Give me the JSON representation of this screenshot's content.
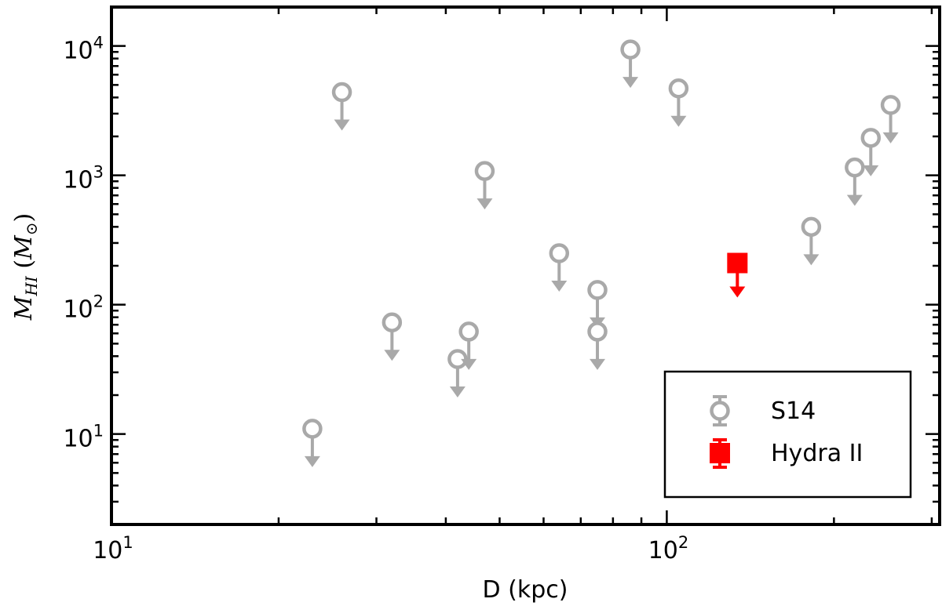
{
  "chart_data": {
    "type": "scatter",
    "title": "",
    "xlabel": "D (kpc)",
    "ylabel": "M_HI (M_⊙)",
    "x_scale": "log",
    "y_scale": "log",
    "xlim": [
      10,
      310
    ],
    "ylim": [
      2,
      20000
    ],
    "x_ticks": [
      {
        "value": 10,
        "base": "10",
        "exp": "1"
      },
      {
        "value": 100,
        "base": "10",
        "exp": "2"
      }
    ],
    "y_ticks": [
      {
        "value": 10,
        "base": "10",
        "exp": "1"
      },
      {
        "value": 100,
        "base": "10",
        "exp": "2"
      },
      {
        "value": 1000,
        "base": "10",
        "exp": "3"
      },
      {
        "value": 10000,
        "base": "10",
        "exp": "4"
      }
    ],
    "grid": false,
    "legend_position": "lower-right",
    "upper_limits": true,
    "colors": {
      "S14": "#a9a9a9",
      "Hydra II": "#ff0000"
    },
    "series": [
      {
        "name": "S14",
        "marker": "open-circle",
        "points": [
          {
            "x": 23,
            "y": 11
          },
          {
            "x": 26,
            "y": 4400
          },
          {
            "x": 32,
            "y": 73
          },
          {
            "x": 42,
            "y": 38
          },
          {
            "x": 44,
            "y": 62
          },
          {
            "x": 47,
            "y": 1080
          },
          {
            "x": 64,
            "y": 250
          },
          {
            "x": 75,
            "y": 130
          },
          {
            "x": 75,
            "y": 62
          },
          {
            "x": 86,
            "y": 9400
          },
          {
            "x": 105,
            "y": 4700
          },
          {
            "x": 182,
            "y": 400
          },
          {
            "x": 218,
            "y": 1150
          },
          {
            "x": 233,
            "y": 1950
          },
          {
            "x": 253,
            "y": 3500
          }
        ]
      },
      {
        "name": "Hydra II",
        "marker": "filled-square",
        "points": [
          {
            "x": 134,
            "y": 210
          }
        ]
      }
    ]
  }
}
